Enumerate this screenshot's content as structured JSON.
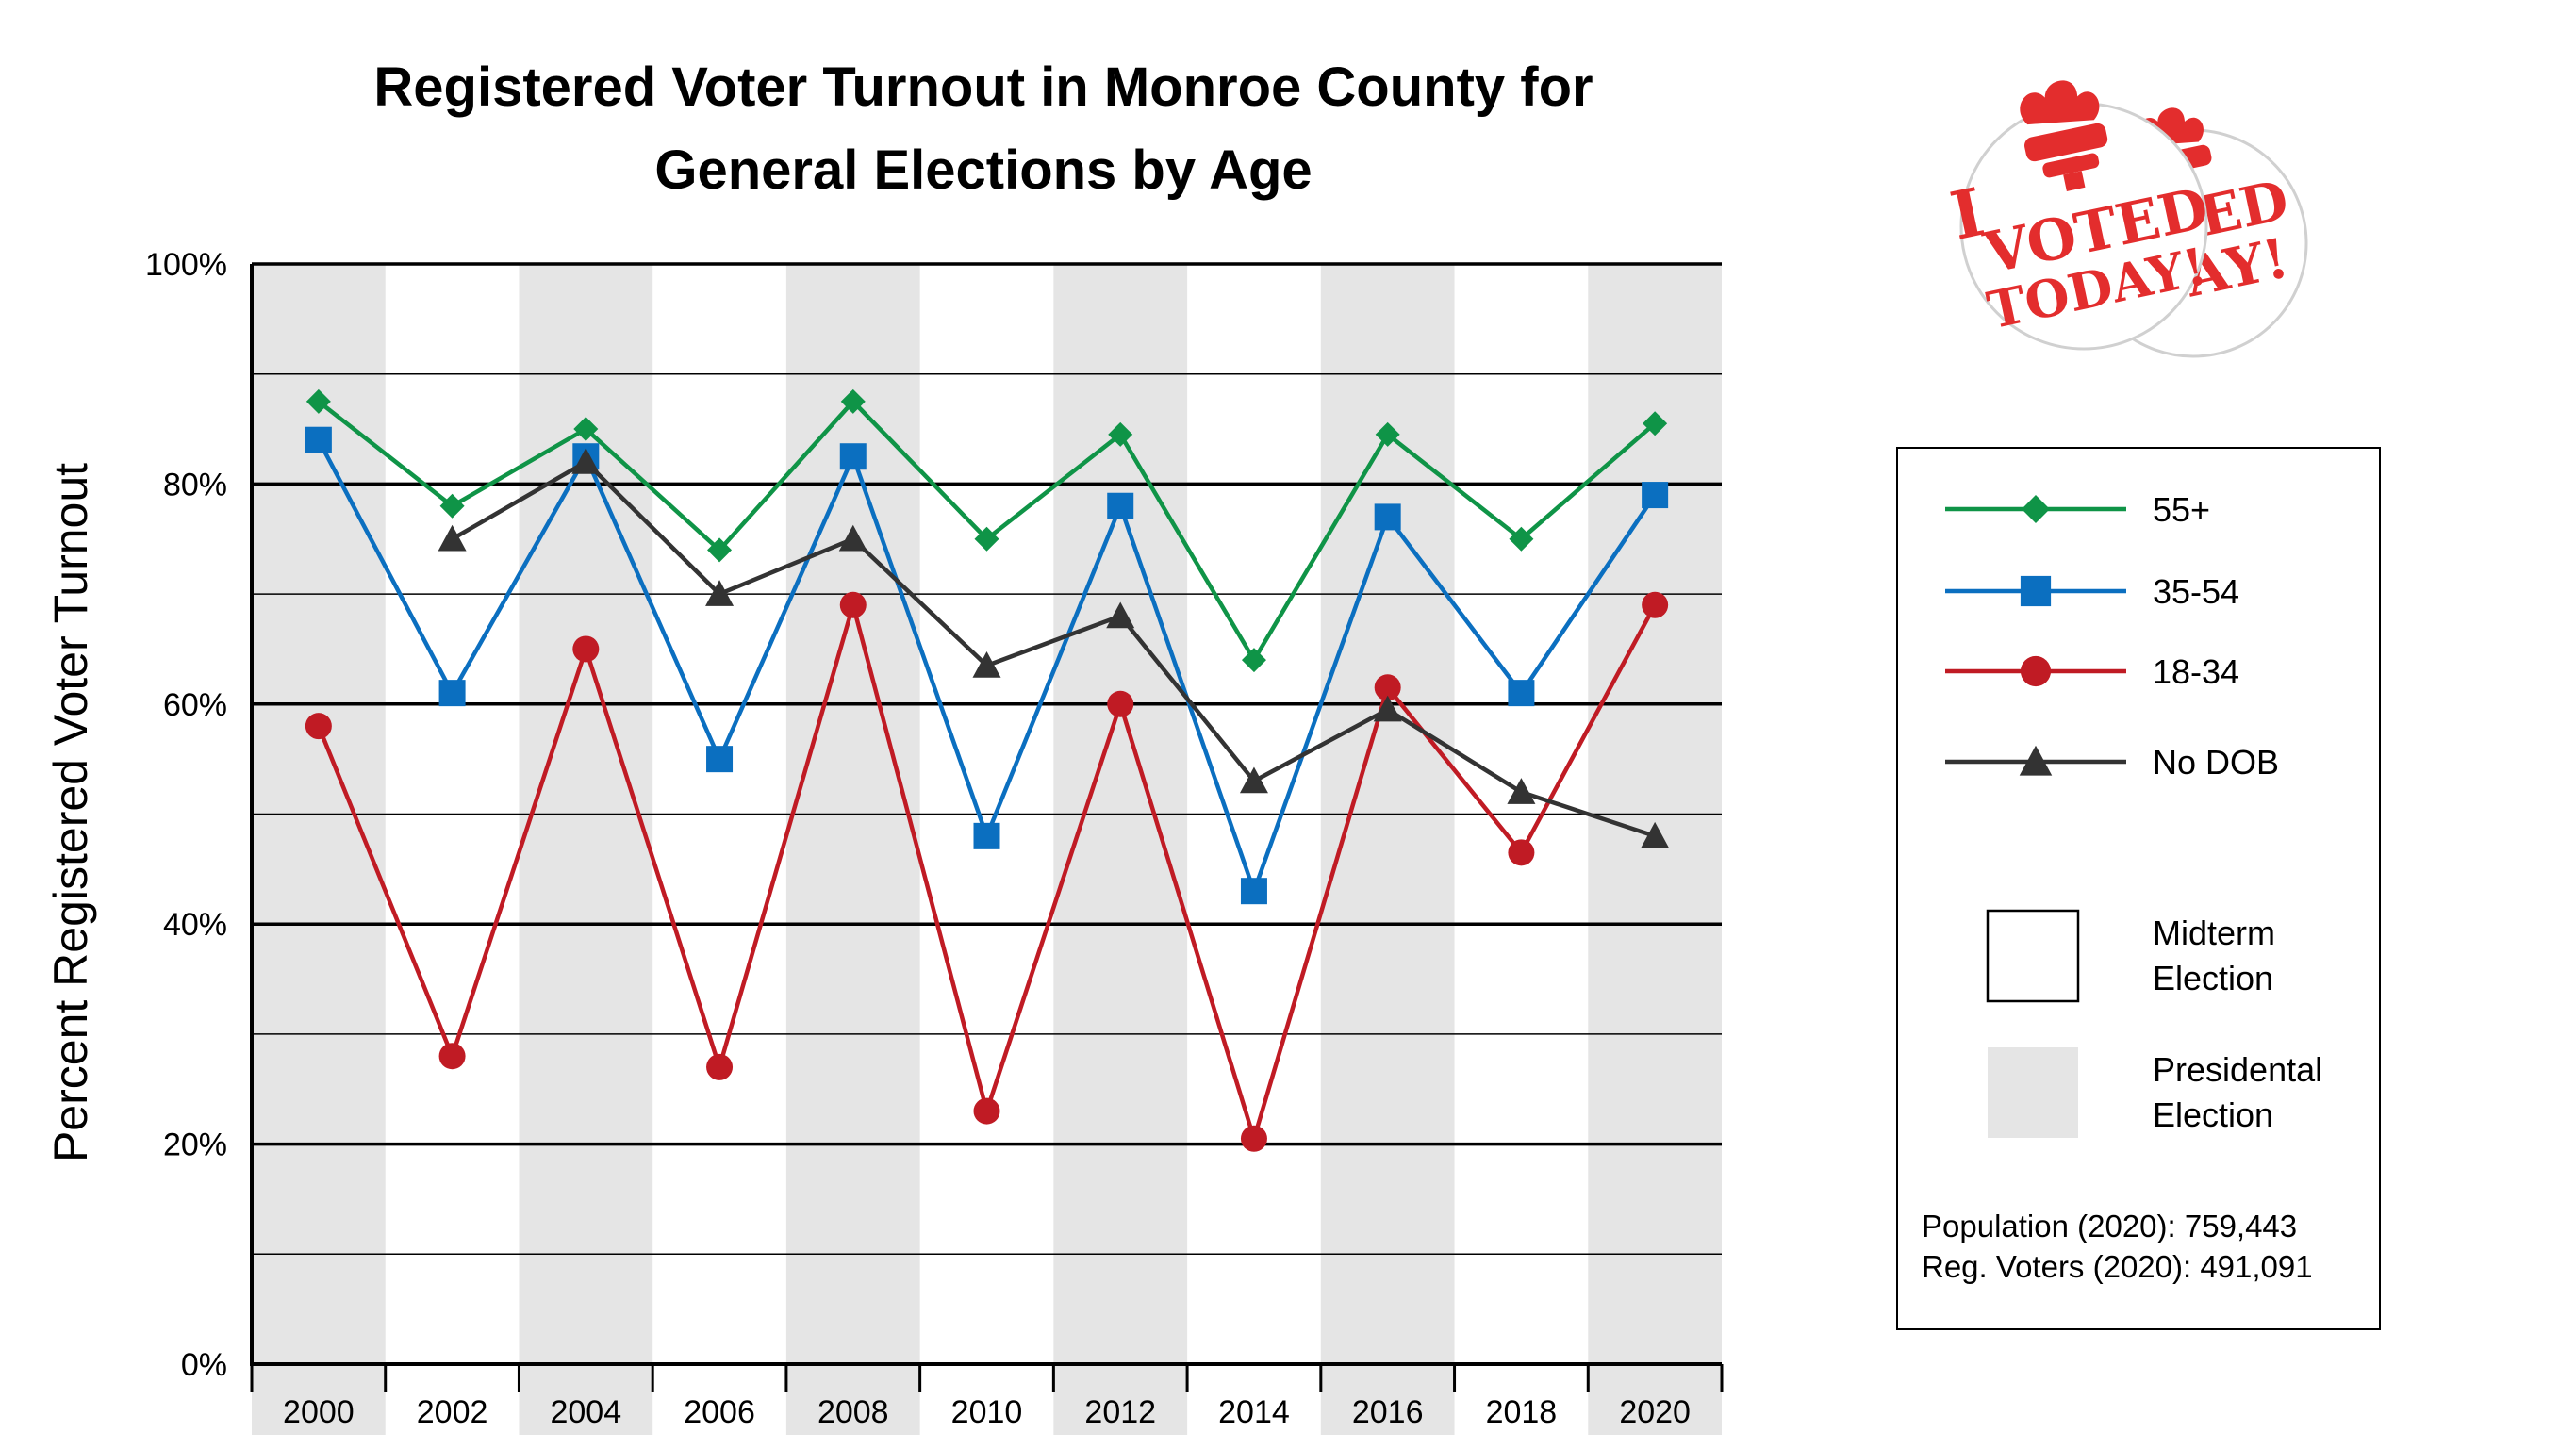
{
  "chart_data": {
    "type": "line",
    "title": "Registered Voter Turnout in Monroe County for General Elections by Age",
    "title_lines": [
      "Registered Voter Turnout in Monroe County for",
      "General Elections by Age"
    ],
    "ylabel": "Percent Registered Voter Turnout",
    "xlabel": "",
    "ylim": [
      0,
      100
    ],
    "y_ticks": [
      0,
      20,
      40,
      60,
      80,
      100
    ],
    "y_tick_labels": [
      "0%",
      "20%",
      "40%",
      "60%",
      "80%",
      "100%"
    ],
    "grid": true,
    "x": [
      "2000",
      "2002",
      "2004",
      "2006",
      "2008",
      "2010",
      "2012",
      "2014",
      "2016",
      "2018",
      "2020"
    ],
    "presidential_years": [
      "2000",
      "2004",
      "2008",
      "2012",
      "2016",
      "2020"
    ],
    "legend_position": "right",
    "series": [
      {
        "name": "55+",
        "color": "#0f9447",
        "marker": "diamond",
        "values": [
          87.5,
          78,
          85,
          74,
          87.5,
          75,
          84.5,
          64,
          84.5,
          75,
          85.5
        ]
      },
      {
        "name": "35-54",
        "color": "#0b6fc0",
        "marker": "square",
        "values": [
          84,
          61,
          82.5,
          55,
          82.5,
          48,
          78,
          43,
          77,
          61,
          79
        ]
      },
      {
        "name": "18-34",
        "color": "#c01b24",
        "marker": "circle",
        "values": [
          58,
          28,
          65,
          27,
          69,
          23,
          60,
          20.5,
          61.5,
          46.5,
          69
        ]
      },
      {
        "name": "No DOB",
        "color": "#333333",
        "marker": "triangle",
        "values": [
          null,
          75,
          82,
          70,
          75,
          63.5,
          68,
          53,
          59.5,
          52,
          48
        ]
      }
    ],
    "legend_fills": [
      {
        "label_lines": [
          "Midterm",
          "Election"
        ],
        "color": "#ffffff"
      },
      {
        "label_lines": [
          "Presidental",
          "Election"
        ],
        "color": "#e5e5e5"
      }
    ]
  },
  "stats": {
    "population": "Population (2020): 759,443",
    "registered": "Reg. Voters (2020): 491,091"
  },
  "sticker": {
    "text_lines": [
      "I",
      "VOTED",
      "TODAY!"
    ],
    "color": "#e32d2d"
  },
  "colors": {
    "axis": "#000000",
    "grid": "#000000",
    "presidential_band": "#e5e5e5"
  }
}
